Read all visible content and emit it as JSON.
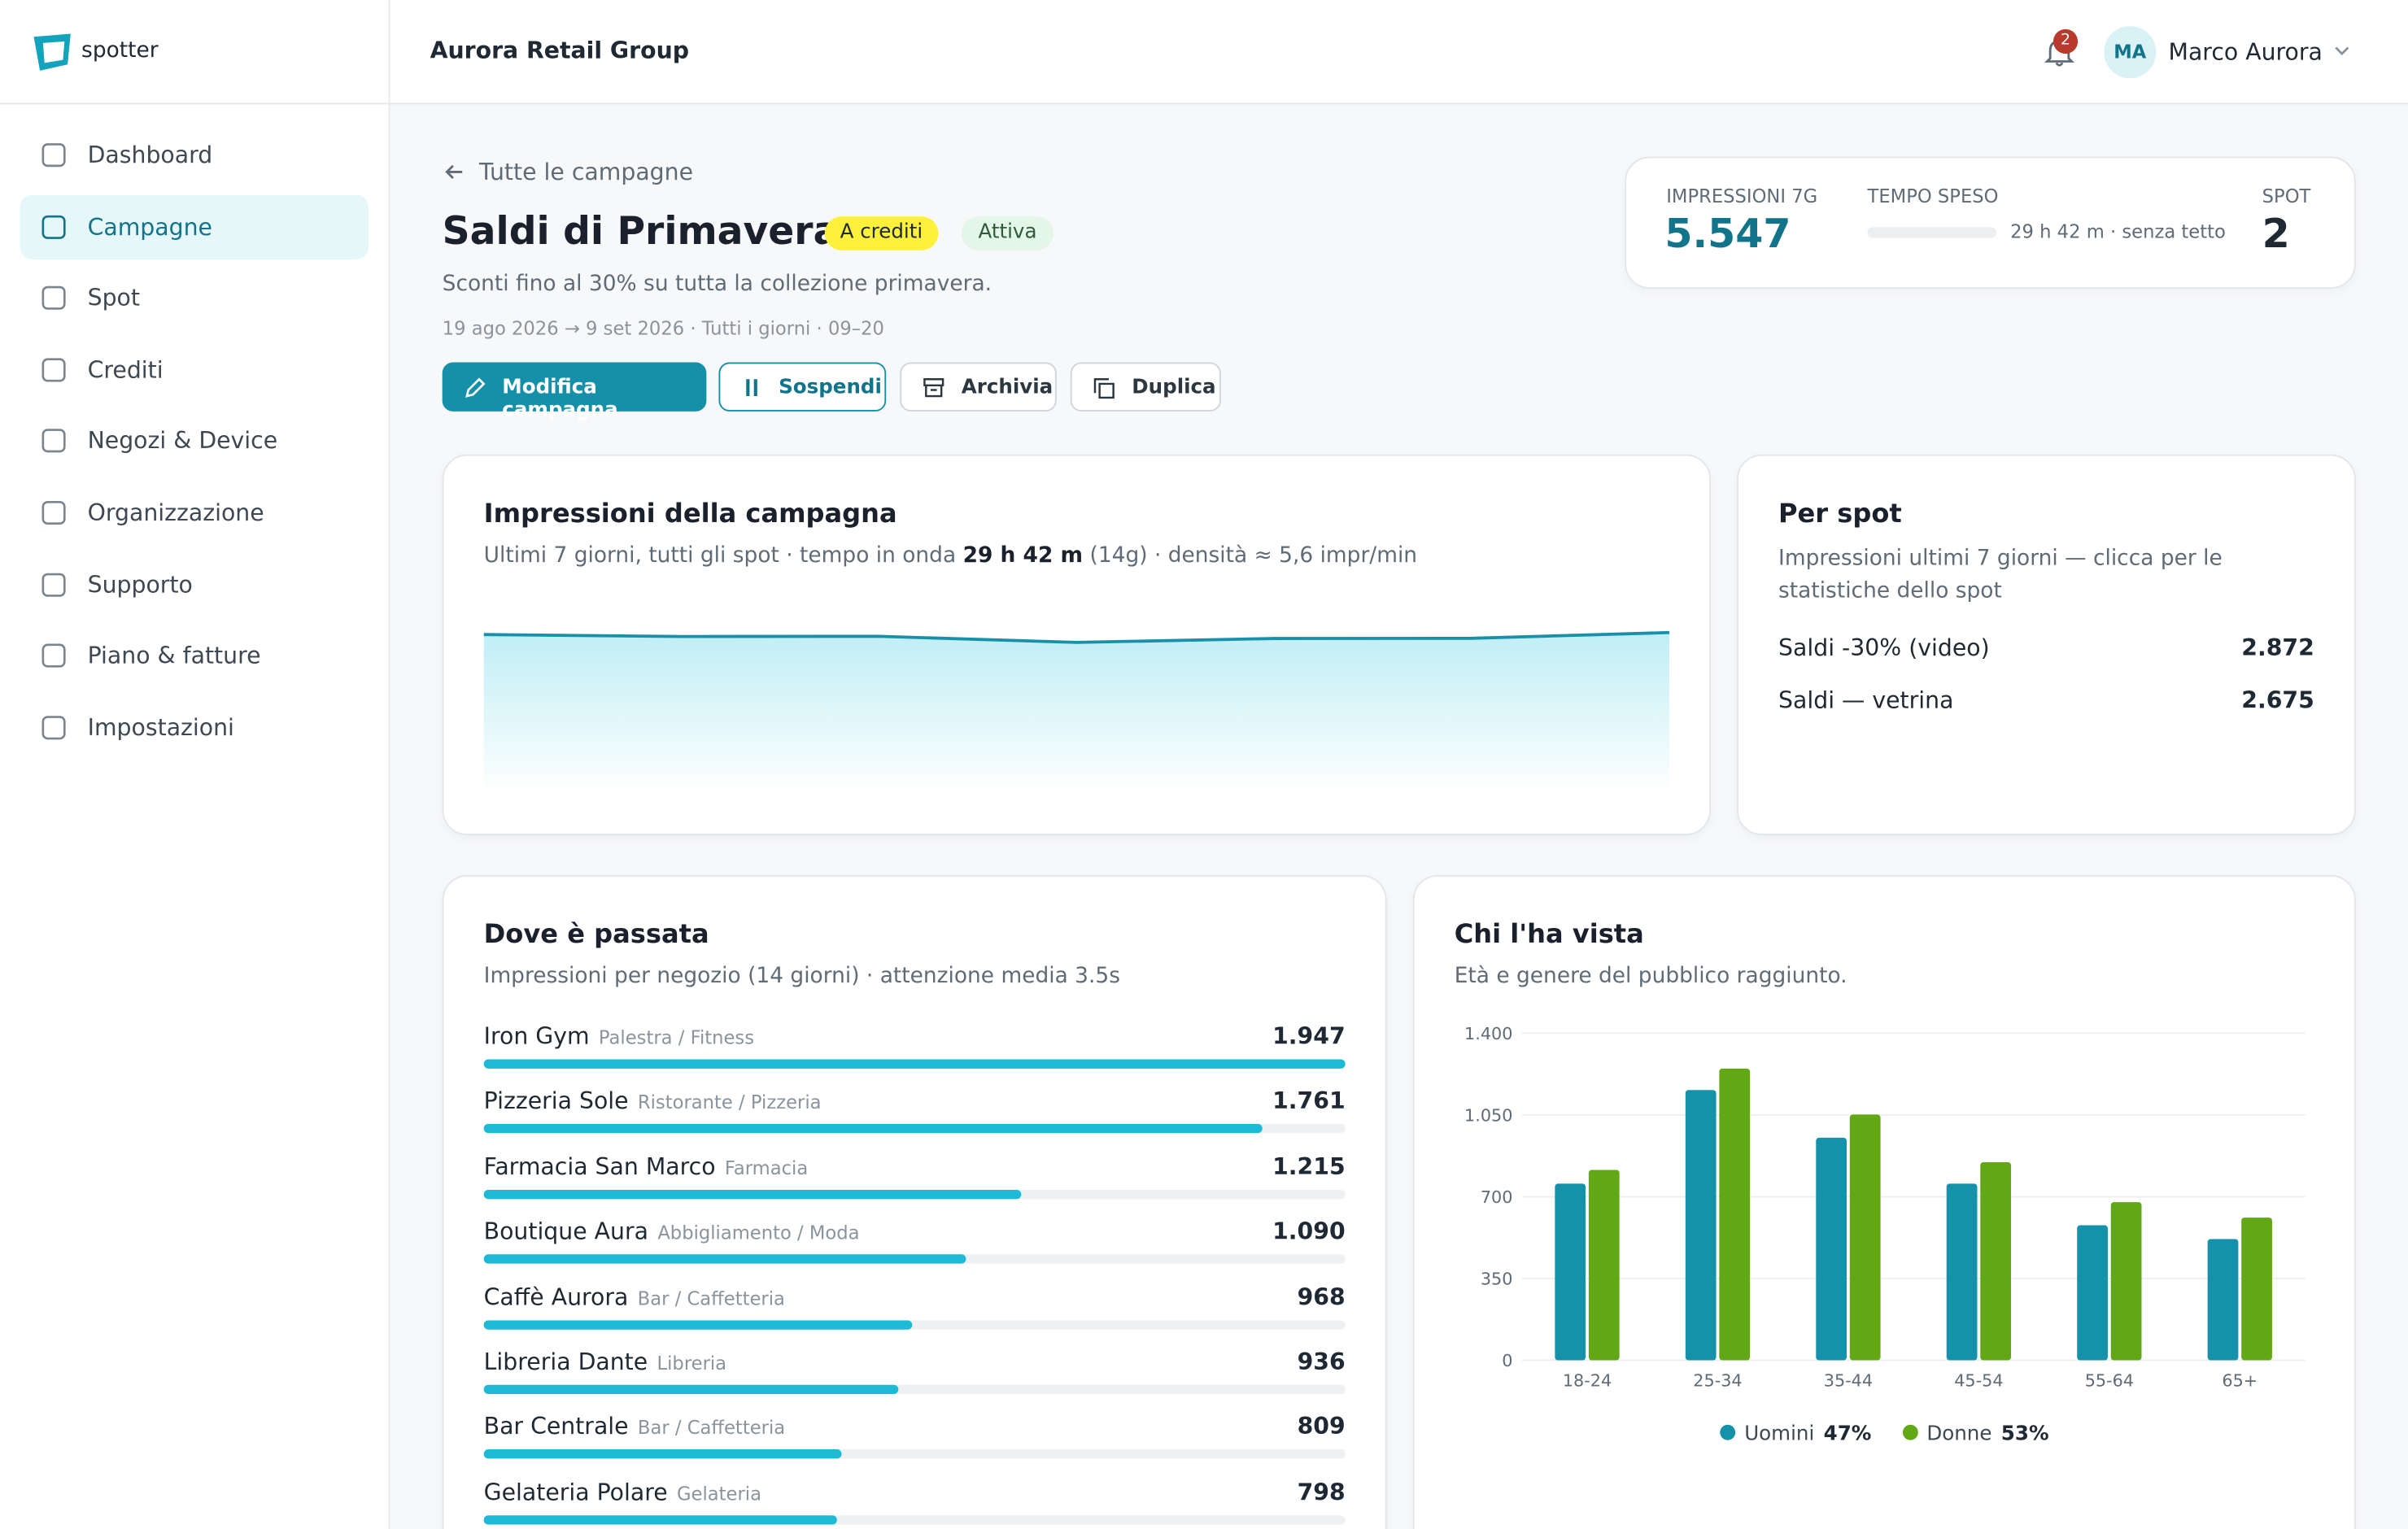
{
  "sidebar": {
    "brand": "spotter",
    "nav": [
      "Dashboard",
      "Campagne",
      "Spot",
      "Crediti",
      "Negozi & Device",
      "Organizzazione",
      "Supporto",
      "Piano & fatture",
      "Impostazioni"
    ],
    "active": 1
  },
  "header": {
    "org": "Aurora Retail Group",
    "notifications": 2,
    "avatar": "MA",
    "user": "Marco Aurora"
  },
  "campaign": {
    "back": "Tutte le campagne",
    "title": "Saldi di Primavera",
    "badges": [
      "A crediti",
      "Attiva"
    ],
    "description": "Sconti fino al 30% su tutta la collezione primavera.",
    "schedule": "19 ago 2026 → 9 set 2026 · Tutti i giorni · 09–20",
    "actions": [
      "Modifica campagna",
      "Sospendi",
      "Archivia",
      "Duplica"
    ]
  },
  "kpis": {
    "impressions_label": "IMPRESSIONI 7G",
    "impressions": {
      "value": 5547,
      "label": "5.547"
    },
    "time_label": "TEMPO SPESO",
    "time": "29 h 42 m · senza tetto",
    "spot_label": "SPOT",
    "spot": 2
  },
  "impressions_card": {
    "subtitle_before": "Ultimi 7 giorni, tutti gli spot · tempo in onda",
    "subtitle_bold": "29 h 42 m",
    "subtitle_after": "(14g) · densità ≈ 5,6 impr/min"
  },
  "spot_card": {
    "title": "Per spot",
    "subtitle": "Impressioni ultimi 7 giorni — clicca per le statistiche dello spot",
    "rows": [
      {
        "name": "Saldi -30% (video)",
        "value": 2872,
        "value_label": "2.872"
      },
      {
        "name": "Saldi — vetrina",
        "value": 2675,
        "value_label": "2.675"
      }
    ]
  },
  "stores_card": {
    "title": "Dove è passata",
    "subtitle": "Impressioni per negozio (14 giorni) · attenzione media 3.5s",
    "rows": [
      {
        "name": "Iron Gym",
        "category": "Palestra / Fitness",
        "value": 1947,
        "value_label": "1.947"
      },
      {
        "name": "Pizzeria Sole",
        "category": "Ristorante / Pizzeria",
        "value": 1761,
        "value_label": "1.761"
      },
      {
        "name": "Farmacia San Marco",
        "category": "Farmacia",
        "value": 1215,
        "value_label": "1.215"
      },
      {
        "name": "Boutique Aura",
        "category": "Abbigliamento / Moda",
        "value": 1090,
        "value_label": "1.090"
      },
      {
        "name": "Caffè Aurora",
        "category": "Bar / Caffetteria",
        "value": 968
      },
      {
        "name": "Libreria Dante",
        "category": "Libreria",
        "value": 936
      },
      {
        "name": "Bar Centrale",
        "category": "Bar / Caffetteria",
        "value": 809
      },
      {
        "name": "Gelateria Polare",
        "category": "Gelateria",
        "value": 798
      }
    ]
  },
  "audience_card": {
    "subtitle": "Età e genere del pubblico raggiunto."
  },
  "chart_data": [
    {
      "type": "area",
      "title": "Impressioni della campagna",
      "values": [
        805,
        795,
        796,
        765,
        785,
        786,
        815
      ],
      "color": "#1a8fa8"
    },
    {
      "type": "bar",
      "title": "Chi l'ha vista",
      "categories": [
        "18-24",
        "25-34",
        "35-44",
        "45-54",
        "55-64",
        "65+"
      ],
      "series": [
        {
          "name": "Uomini",
          "color": "#1592a9",
          "share": 47,
          "share_label": "47%",
          "values": [
            756,
            1157,
            953,
            756,
            578,
            519
          ]
        },
        {
          "name": "Donne",
          "color": "#62a814",
          "share": 53,
          "share_label": "53%",
          "values": [
            815,
            1249,
            1052,
            848,
            677,
            611
          ]
        }
      ],
      "ylim": [
        0,
        1400
      ],
      "yticks": [
        0,
        350,
        700,
        {
          "value": 1050,
          "label": "1.050"
        },
        {
          "value": 1400,
          "label": "1.400"
        }
      ],
      "grid": true
    }
  ]
}
